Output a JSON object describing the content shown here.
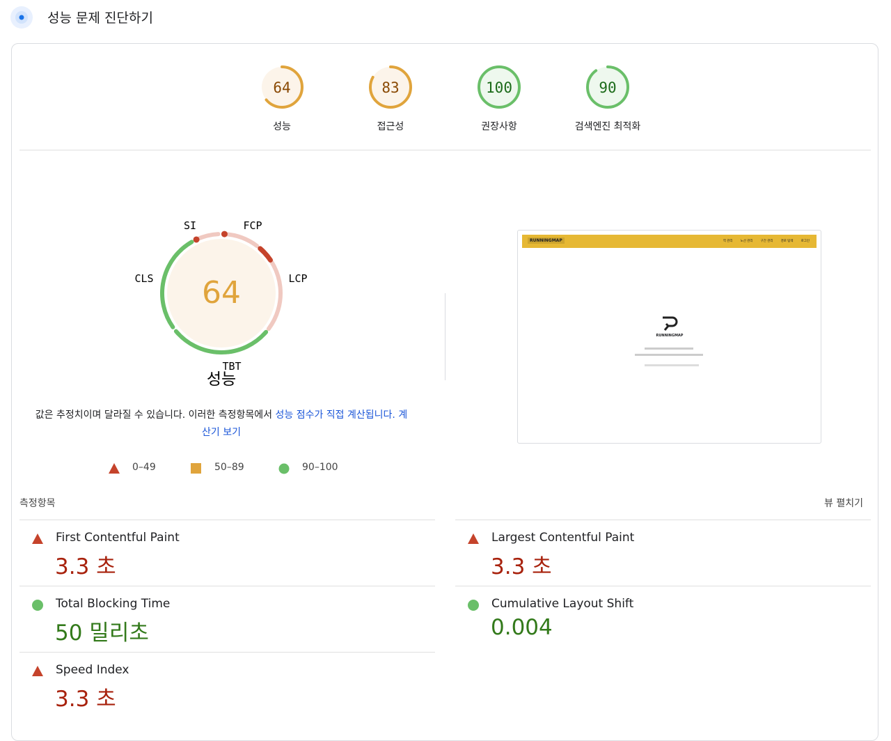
{
  "header": {
    "title": "성능 문제 진단하기"
  },
  "scores": [
    {
      "value": 64,
      "label": "성능",
      "rating": "average"
    },
    {
      "value": 83,
      "label": "접근성",
      "rating": "average"
    },
    {
      "value": 100,
      "label": "권장사항",
      "rating": "pass"
    },
    {
      "value": 90,
      "label": "검색엔진 최적화",
      "rating": "pass"
    }
  ],
  "performance": {
    "score": 64,
    "rating": "average",
    "title": "성능",
    "gauge_labels": [
      "SI",
      "FCP",
      "LCP",
      "TBT",
      "CLS"
    ],
    "note": {
      "text": "값은 추정치이며 달라질 수 있습니다. 이러한 측정항목에서 ",
      "link": "성능 점수가 직접 계산됩니다.",
      "link2": "계산기 보기"
    },
    "legend": [
      "0–49",
      "50–89",
      "90–100"
    ]
  },
  "thumbnail": {
    "brand": "RUNNINGMAP",
    "nav": [
      "역 관리",
      "노선 관리",
      "구간 관리",
      "경로 탐색",
      "로그인"
    ],
    "logo": "RUNNINGMAP"
  },
  "metrics": {
    "title": "측정항목",
    "toggle": "뷰 펼치기",
    "items": [
      {
        "name": "First Contentful Paint",
        "value": "3.3 초",
        "status": "fail"
      },
      {
        "name": "Largest Contentful Paint",
        "value": "3.3 초",
        "status": "fail"
      },
      {
        "name": "Total Blocking Time",
        "value": "50 밀리초",
        "status": "pass"
      },
      {
        "name": "Cumulative Layout Shift",
        "value": "0.004",
        "status": "pass"
      },
      {
        "name": "Speed Index",
        "value": "3.3 초",
        "status": "fail"
      }
    ]
  }
}
